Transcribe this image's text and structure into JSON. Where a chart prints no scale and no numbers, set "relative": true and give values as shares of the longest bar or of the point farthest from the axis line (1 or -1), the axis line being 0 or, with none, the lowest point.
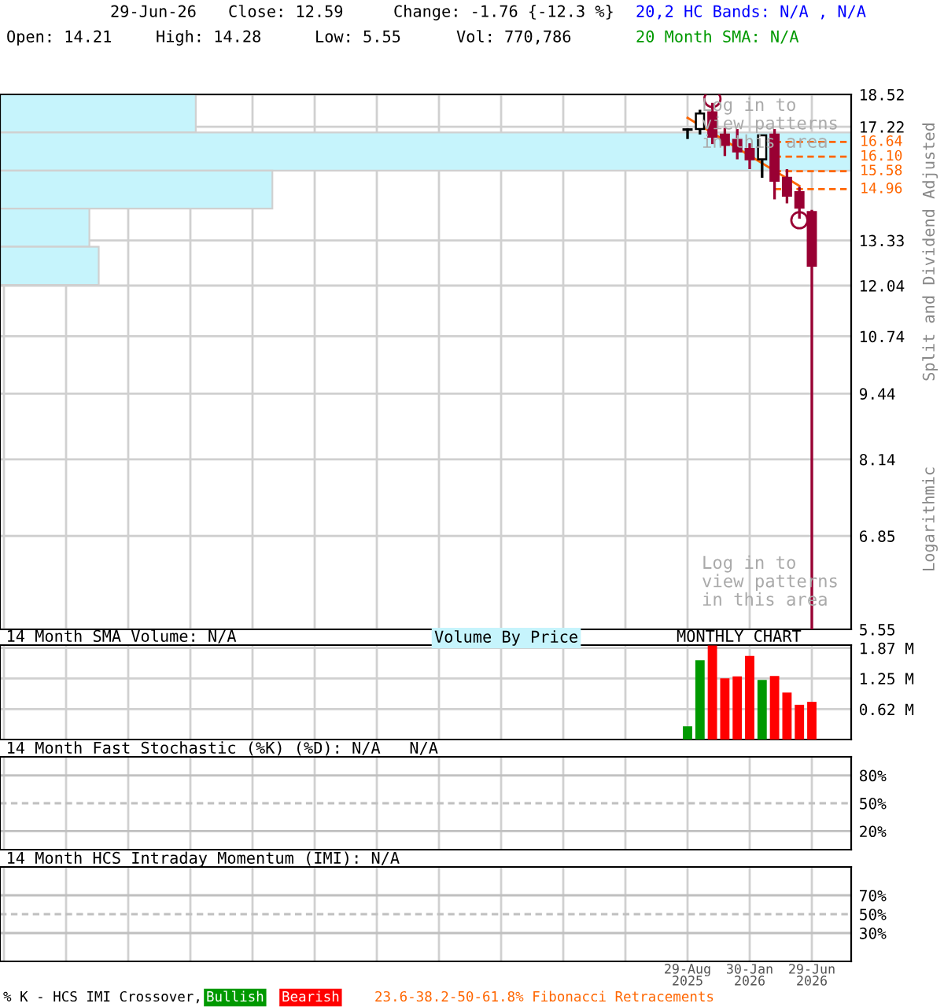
{
  "chart_data": [
    {
      "type": "candlestick",
      "categories": [
        null,
        null,
        null,
        null,
        null,
        null,
        null,
        null,
        null,
        null,
        null
      ],
      "ohlc": [
        [
          17.1,
          17.15,
          16.75,
          17.12
        ],
        [
          17.13,
          17.89,
          16.92,
          17.74
        ],
        [
          17.79,
          18.17,
          16.56,
          16.84
        ],
        [
          16.92,
          17.17,
          16.12,
          16.53
        ],
        [
          16.72,
          17.13,
          16.0,
          16.29
        ],
        [
          16.38,
          16.59,
          15.65,
          16.0
        ],
        [
          16.0,
          16.92,
          15.35,
          16.89
        ],
        [
          16.92,
          17.13,
          14.62,
          15.25
        ],
        [
          15.35,
          15.65,
          14.49,
          14.74
        ],
        [
          14.86,
          15.04,
          14.0,
          14.35
        ],
        [
          14.21,
          14.28,
          5.55,
          12.59
        ]
      ],
      "colors": [
        "#ffffff",
        "#ffffff",
        "#990033",
        "#990033",
        "#990033",
        "#990033",
        "#ffffff",
        "#990033",
        "#990033",
        "#990033",
        "#990033"
      ],
      "series": [
        {
          "type": "line",
          "color": "#ff6600",
          "values": [
            17.57,
            null,
            null,
            null,
            null,
            null,
            null,
            null,
            null,
            15.07,
            null
          ]
        },
        {
          "type": "scatter",
          "marker": "circle",
          "color": "#990033",
          "values": [
            null,
            null,
            18.33,
            null,
            null,
            null,
            null,
            null,
            null,
            13.95,
            null
          ]
        }
      ],
      "log": true,
      "ylim": [
        5.55,
        18.52
      ],
      "yticks": [
        5.55,
        6.85,
        8.14,
        9.44,
        10.74,
        12.04,
        13.33,
        17.22,
        18.52
      ],
      "ref_lines": [
        {
          "axis": "y",
          "value": 16.64,
          "label": "16.64",
          "color": "#ff6600",
          "line_style": "dashed"
        },
        {
          "axis": "y",
          "value": 16.1,
          "label": "16.10",
          "color": "#ff6600",
          "line_style": "dashed"
        },
        {
          "axis": "y",
          "value": 15.58,
          "label": "15.58",
          "color": "#ff6600",
          "line_style": "dashed"
        },
        {
          "axis": "y",
          "value": 14.96,
          "label": "14.96",
          "color": "#ff6600",
          "line_style": "dashed"
        }
      ],
      "ylabel": "Split and Dividend Adjusted",
      "annotations": [
        "29-Jun-26",
        "Close: 12.59",
        "Change: -1.76 {-12.3 %}",
        "20,2 HC Bands: N/A , N/A",
        "Open: 14.21",
        "High: 14.28",
        "Low: 5.55",
        "Vol: 770,786",
        "20 Month SMA: N/A",
        "Log in to\nview patterns\nin this area",
        "Log in to\nview patterns\nin this area",
        "Logarithmic",
        "% K - HCS IMI Crossover,",
        "Bullish",
        "Bearish",
        "23.6-38.2-50-61.8% Fibonacci Retracements"
      ],
      "grid": true,
      "tick_labels": "y"
    },
    {
      "type": "bar",
      "orientation": "horizontal",
      "relative": true,
      "title": "Volume By Price",
      "categories": [
        null,
        null,
        null,
        null,
        null
      ],
      "values": [
        0.23,
        1,
        0.32,
        0.105,
        0.116
      ],
      "color": "#c6f4fc"
    },
    {
      "type": "bar",
      "annotations": [
        "14 Month SMA Volume: N/A",
        "MONTHLY CHART"
      ],
      "categories": [
        null,
        null,
        null,
        null,
        null,
        null,
        null,
        null,
        null,
        null,
        null
      ],
      "values": [
        0.27,
        1.62,
        1.92,
        1.25,
        1.29,
        1.71,
        1.22,
        1.3,
        0.96,
        0.71,
        0.77
      ],
      "colors": [
        "#009900",
        "#009900",
        "#ff0000",
        "#ff0000",
        "#ff0000",
        "#ff0000",
        "#009900",
        "#ff0000",
        "#ff0000",
        "#ff0000",
        "#ff0000"
      ],
      "ylim": [
        0,
        1.93
      ],
      "yticks": [
        {
          "value": 0.62,
          "label": "0.62 M"
        },
        {
          "value": 1.25,
          "label": "1.25 M"
        },
        {
          "value": 1.87,
          "label": "1.87 M"
        }
      ],
      "grid": true,
      "tick_labels": "y"
    },
    {
      "type": "line",
      "annotations": [
        "14 Month Fast Stochastic (%K) (%D): N/A   N/A"
      ],
      "categories": [
        null,
        null,
        null,
        null,
        null,
        null,
        null,
        null,
        null,
        null,
        null
      ],
      "ylim": [
        0,
        100
      ],
      "yticks": [
        {
          "value": 20,
          "label": "20%"
        },
        {
          "value": 50,
          "label": "50%"
        },
        {
          "value": 80,
          "label": "80%"
        }
      ],
      "ref_lines": [
        {
          "axis": "y",
          "value": 20,
          "color": "#c0c0c0",
          "line_style": "solid"
        },
        {
          "axis": "y",
          "value": 50,
          "color": "#c0c0c0",
          "line_style": "dashed"
        },
        {
          "axis": "y",
          "value": 80,
          "color": "#c0c0c0",
          "line_style": "solid"
        }
      ],
      "grid": "x",
      "tick_labels": "y"
    },
    {
      "type": "line",
      "annotations": [
        "14 Month HCS Intraday Momentum (IMI): N/A"
      ],
      "categories": [
        "29-Aug\n2025",
        null,
        null,
        null,
        null,
        "30-Jan\n2026",
        null,
        null,
        null,
        null,
        "29-Jun\n2026"
      ],
      "ylim": [
        0,
        100
      ],
      "yticks": [
        {
          "value": 30,
          "label": "30%"
        },
        {
          "value": 50,
          "label": "50%"
        },
        {
          "value": 70,
          "label": "70%"
        }
      ],
      "ref_lines": [
        {
          "axis": "y",
          "value": 30,
          "color": "#c0c0c0",
          "line_style": "solid"
        },
        {
          "axis": "y",
          "value": 50,
          "color": "#c0c0c0",
          "line_style": "dashed"
        },
        {
          "axis": "y",
          "value": 70,
          "color": "#c0c0c0",
          "line_style": "solid"
        }
      ],
      "grid": "x"
    }
  ]
}
